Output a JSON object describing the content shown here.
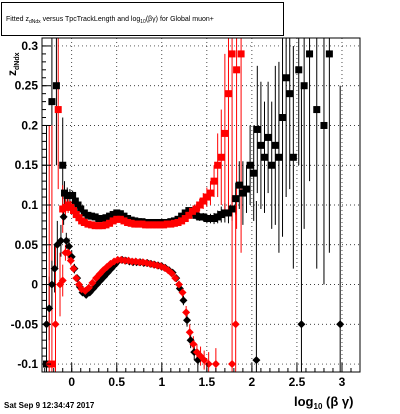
{
  "title": {
    "prefix": "Fitted  z",
    "sub": "dNdx",
    "middle": " versus TpcTrackLength and log",
    "sub2": "10",
    "suffix": "(βγ) for Global muon+"
  },
  "timestamp": "Sat Sep  9 12:34:47 2017",
  "x_axis_title": {
    "main": "log",
    "sub": "10",
    "rest": "(β γ)"
  },
  "y_axis_title": {
    "main": "z",
    "sub": "dNdx"
  },
  "chart_data": {
    "type": "scatter",
    "xlim": [
      -0.33,
      3.2
    ],
    "ylim": [
      -0.11,
      0.31
    ],
    "x_ticks": [
      0,
      0.5,
      1,
      1.5,
      2,
      2.5,
      3
    ],
    "x_tick_labels": [
      "0",
      "0.5",
      "1",
      "1.5",
      "2",
      "2.5",
      "3"
    ],
    "y_ticks": [
      -0.1,
      -0.05,
      0,
      0.05,
      0.1,
      0.15,
      0.2,
      0.25,
      0.3
    ],
    "y_tick_labels": [
      "-0.1",
      "-0.05",
      "0",
      "0.05",
      "0.1",
      "0.15",
      "0.2",
      "0.25",
      "0.3"
    ],
    "grid": true,
    "series": [
      {
        "marker": "square",
        "color": "#000000",
        "points": [
          [
            -0.28,
            -0.1,
            0.3
          ],
          [
            -0.22,
            0.23,
            0.08
          ],
          [
            -0.17,
            0.25,
            0.1
          ],
          [
            -0.1,
            0.15,
            0.06
          ],
          [
            -0.08,
            0.115,
            0.015
          ],
          [
            -0.05,
            0.112,
            0.01
          ],
          [
            -0.02,
            0.112,
            0.008
          ],
          [
            0.01,
            0.112,
            0.006
          ],
          [
            0.04,
            0.105,
            0.005
          ],
          [
            0.07,
            0.1,
            0.004
          ],
          [
            0.1,
            0.095,
            0.004
          ],
          [
            0.14,
            0.09,
            0.003
          ],
          [
            0.18,
            0.087,
            0.003
          ],
          [
            0.22,
            0.086,
            0.002
          ],
          [
            0.26,
            0.085,
            0.002
          ],
          [
            0.3,
            0.083,
            0.002
          ],
          [
            0.34,
            0.083,
            0.002
          ],
          [
            0.38,
            0.084,
            0.002
          ],
          [
            0.42,
            0.086,
            0.002
          ],
          [
            0.46,
            0.088,
            0.002
          ],
          [
            0.5,
            0.09,
            0.002
          ],
          [
            0.54,
            0.089,
            0.002
          ],
          [
            0.58,
            0.086,
            0.002
          ],
          [
            0.62,
            0.083,
            0.002
          ],
          [
            0.66,
            0.081,
            0.002
          ],
          [
            0.7,
            0.08,
            0.002
          ],
          [
            0.74,
            0.079,
            0.002
          ],
          [
            0.78,
            0.079,
            0.002
          ],
          [
            0.82,
            0.078,
            0.002
          ],
          [
            0.86,
            0.078,
            0.002
          ],
          [
            0.9,
            0.078,
            0.002
          ],
          [
            0.94,
            0.078,
            0.002
          ],
          [
            0.98,
            0.078,
            0.002
          ],
          [
            1.02,
            0.078,
            0.002
          ],
          [
            1.06,
            0.078,
            0.002
          ],
          [
            1.1,
            0.079,
            0.002
          ],
          [
            1.14,
            0.08,
            0.003
          ],
          [
            1.18,
            0.082,
            0.003
          ],
          [
            1.22,
            0.086,
            0.004
          ],
          [
            1.26,
            0.09,
            0.004
          ],
          [
            1.3,
            0.093,
            0.004
          ],
          [
            1.34,
            0.09,
            0.004
          ],
          [
            1.38,
            0.087,
            0.005
          ],
          [
            1.42,
            0.085,
            0.005
          ],
          [
            1.46,
            0.085,
            0.005
          ],
          [
            1.5,
            0.083,
            0.006
          ],
          [
            1.54,
            0.083,
            0.006
          ],
          [
            1.58,
            0.083,
            0.007
          ],
          [
            1.62,
            0.085,
            0.008
          ],
          [
            1.66,
            0.088,
            0.01
          ],
          [
            1.7,
            0.09,
            0.012
          ],
          [
            1.74,
            0.09,
            0.013
          ],
          [
            1.78,
            0.095,
            0.015
          ],
          [
            1.82,
            0.108,
            0.02
          ],
          [
            1.86,
            0.125,
            0.03
          ],
          [
            1.9,
            0.115,
            0.04
          ],
          [
            1.94,
            0.12,
            0.03
          ],
          [
            1.98,
            0.15,
            0.05
          ],
          [
            2.02,
            0.14,
            0.06
          ],
          [
            2.06,
            0.195,
            0.08
          ],
          [
            2.1,
            0.175,
            0.08
          ],
          [
            2.14,
            0.16,
            0.07
          ],
          [
            2.18,
            0.185,
            0.07
          ],
          [
            2.22,
            0.15,
            0.08
          ],
          [
            2.26,
            0.175,
            0.1
          ],
          [
            2.3,
            0.16,
            0.12
          ],
          [
            2.34,
            0.21,
            0.15
          ],
          [
            2.38,
            0.26,
            0.15
          ],
          [
            2.42,
            0.24,
            0.12
          ],
          [
            2.46,
            0.16,
            0.14
          ],
          [
            2.52,
            0.27,
            0.12
          ],
          [
            2.58,
            0.25,
            0.18
          ],
          [
            2.64,
            0.29,
            0.16
          ],
          [
            2.72,
            0.22,
            0.2
          ],
          [
            2.8,
            0.2,
            0.2
          ],
          [
            2.86,
            0.29,
            0.25
          ]
        ]
      },
      {
        "marker": "square",
        "color": "#ff0000",
        "points": [
          [
            -0.22,
            -0.1,
            0.3
          ],
          [
            -0.15,
            0.22,
            0.1
          ],
          [
            -0.1,
            0.095,
            0.03
          ],
          [
            -0.07,
            0.097,
            0.015
          ],
          [
            -0.04,
            0.1,
            0.01
          ],
          [
            -0.01,
            0.097,
            0.008
          ],
          [
            0.02,
            0.093,
            0.006
          ],
          [
            0.05,
            0.088,
            0.005
          ],
          [
            0.08,
            0.084,
            0.004
          ],
          [
            0.11,
            0.08,
            0.004
          ],
          [
            0.14,
            0.078,
            0.003
          ],
          [
            0.18,
            0.076,
            0.003
          ],
          [
            0.22,
            0.075,
            0.002
          ],
          [
            0.26,
            0.074,
            0.002
          ],
          [
            0.3,
            0.074,
            0.002
          ],
          [
            0.34,
            0.074,
            0.002
          ],
          [
            0.38,
            0.075,
            0.002
          ],
          [
            0.42,
            0.077,
            0.002
          ],
          [
            0.46,
            0.08,
            0.002
          ],
          [
            0.5,
            0.082,
            0.002
          ],
          [
            0.54,
            0.082,
            0.002
          ],
          [
            0.58,
            0.08,
            0.002
          ],
          [
            0.62,
            0.078,
            0.002
          ],
          [
            0.66,
            0.077,
            0.002
          ],
          [
            0.7,
            0.076,
            0.002
          ],
          [
            0.74,
            0.076,
            0.002
          ],
          [
            0.78,
            0.076,
            0.002
          ],
          [
            0.82,
            0.075,
            0.002
          ],
          [
            0.86,
            0.075,
            0.002
          ],
          [
            0.9,
            0.075,
            0.002
          ],
          [
            0.94,
            0.075,
            0.002
          ],
          [
            0.98,
            0.075,
            0.002
          ],
          [
            1.02,
            0.075,
            0.002
          ],
          [
            1.06,
            0.076,
            0.002
          ],
          [
            1.1,
            0.076,
            0.002
          ],
          [
            1.14,
            0.077,
            0.003
          ],
          [
            1.18,
            0.078,
            0.003
          ],
          [
            1.22,
            0.08,
            0.004
          ],
          [
            1.26,
            0.083,
            0.004
          ],
          [
            1.3,
            0.087,
            0.004
          ],
          [
            1.34,
            0.092,
            0.005
          ],
          [
            1.38,
            0.095,
            0.006
          ],
          [
            1.42,
            0.1,
            0.008
          ],
          [
            1.46,
            0.105,
            0.01
          ],
          [
            1.5,
            0.11,
            0.012
          ],
          [
            1.54,
            0.115,
            0.015
          ],
          [
            1.58,
            0.13,
            0.02
          ],
          [
            1.62,
            0.15,
            0.04
          ],
          [
            1.66,
            0.16,
            0.06
          ],
          [
            1.7,
            0.19,
            0.1
          ],
          [
            1.74,
            0.24,
            0.15
          ],
          [
            1.78,
            0.29,
            0.2
          ],
          [
            1.83,
            0.27,
            0.2
          ],
          [
            1.88,
            0.29,
            0.25
          ]
        ]
      },
      {
        "marker": "diamond",
        "color": "#000000",
        "points": [
          [
            -0.28,
            -0.05,
            0.06
          ],
          [
            -0.25,
            -0.03,
            0.04
          ],
          [
            -0.22,
            0.0,
            0.03
          ],
          [
            -0.19,
            0.02,
            0.03
          ],
          [
            -0.16,
            0.05,
            0.03
          ],
          [
            -0.12,
            0.055,
            0.02
          ],
          [
            -0.09,
            0.085,
            0.01
          ],
          [
            -0.06,
            0.055,
            0.01
          ],
          [
            -0.03,
            0.048,
            0.01
          ],
          [
            0.0,
            0.035,
            0.008
          ],
          [
            0.03,
            0.02,
            0.006
          ],
          [
            0.06,
            0.008,
            0.004
          ],
          [
            0.09,
            -0.003,
            0.003
          ],
          [
            0.12,
            -0.01,
            0.003
          ],
          [
            0.16,
            -0.013,
            0.003
          ],
          [
            0.2,
            -0.01,
            0.002
          ],
          [
            0.24,
            -0.005,
            0.002
          ],
          [
            0.28,
            0.0,
            0.002
          ],
          [
            0.32,
            0.005,
            0.002
          ],
          [
            0.36,
            0.01,
            0.002
          ],
          [
            0.4,
            0.015,
            0.002
          ],
          [
            0.44,
            0.02,
            0.002
          ],
          [
            0.48,
            0.025,
            0.002
          ],
          [
            0.52,
            0.03,
            0.002
          ],
          [
            0.56,
            0.031,
            0.002
          ],
          [
            0.6,
            0.03,
            0.002
          ],
          [
            0.64,
            0.029,
            0.002
          ],
          [
            0.68,
            0.028,
            0.002
          ],
          [
            0.72,
            0.028,
            0.002
          ],
          [
            0.76,
            0.028,
            0.002
          ],
          [
            0.8,
            0.027,
            0.002
          ],
          [
            0.84,
            0.027,
            0.002
          ],
          [
            0.88,
            0.026,
            0.002
          ],
          [
            0.92,
            0.025,
            0.002
          ],
          [
            0.96,
            0.024,
            0.002
          ],
          [
            1.0,
            0.023,
            0.002
          ],
          [
            1.04,
            0.021,
            0.002
          ],
          [
            1.08,
            0.018,
            0.003
          ],
          [
            1.12,
            0.015,
            0.003
          ],
          [
            1.16,
            0.008,
            0.004
          ],
          [
            1.2,
            -0.005,
            0.005
          ],
          [
            1.24,
            -0.02,
            0.006
          ],
          [
            1.28,
            -0.045,
            0.008
          ],
          [
            1.32,
            -0.07,
            0.01
          ],
          [
            1.36,
            -0.085,
            0.01
          ],
          [
            1.4,
            -0.095,
            0.01
          ],
          [
            2.05,
            -0.095,
            0.2
          ],
          [
            2.55,
            -0.05,
            0.3
          ],
          [
            2.98,
            -0.05,
            0.3
          ]
        ]
      },
      {
        "marker": "diamond",
        "color": "#ff0000",
        "points": [
          [
            -0.25,
            -0.1,
            0.3
          ],
          [
            -0.18,
            -0.05,
            0.1
          ],
          [
            -0.13,
            0.0,
            0.04
          ],
          [
            -0.1,
            0.005,
            0.02
          ],
          [
            -0.07,
            0.04,
            0.01
          ],
          [
            -0.04,
            0.04,
            0.008
          ],
          [
            -0.01,
            0.03,
            0.006
          ],
          [
            0.02,
            0.02,
            0.005
          ],
          [
            0.05,
            0.008,
            0.004
          ],
          [
            0.08,
            0.0,
            0.003
          ],
          [
            0.11,
            -0.006,
            0.003
          ],
          [
            0.15,
            -0.008,
            0.003
          ],
          [
            0.19,
            -0.004,
            0.002
          ],
          [
            0.23,
            0.002,
            0.002
          ],
          [
            0.27,
            0.008,
            0.002
          ],
          [
            0.31,
            0.013,
            0.002
          ],
          [
            0.35,
            0.018,
            0.002
          ],
          [
            0.39,
            0.022,
            0.002
          ],
          [
            0.43,
            0.026,
            0.002
          ],
          [
            0.47,
            0.029,
            0.002
          ],
          [
            0.51,
            0.031,
            0.002
          ],
          [
            0.55,
            0.031,
            0.002
          ],
          [
            0.59,
            0.03,
            0.002
          ],
          [
            0.63,
            0.03,
            0.002
          ],
          [
            0.67,
            0.029,
            0.002
          ],
          [
            0.71,
            0.029,
            0.002
          ],
          [
            0.75,
            0.028,
            0.002
          ],
          [
            0.79,
            0.028,
            0.002
          ],
          [
            0.83,
            0.027,
            0.002
          ],
          [
            0.87,
            0.026,
            0.002
          ],
          [
            0.91,
            0.025,
            0.002
          ],
          [
            0.95,
            0.024,
            0.002
          ],
          [
            0.99,
            0.023,
            0.002
          ],
          [
            1.03,
            0.021,
            0.002
          ],
          [
            1.07,
            0.018,
            0.003
          ],
          [
            1.11,
            0.014,
            0.003
          ],
          [
            1.15,
            0.008,
            0.004
          ],
          [
            1.19,
            0.0,
            0.005
          ],
          [
            1.23,
            -0.01,
            0.006
          ],
          [
            1.27,
            -0.035,
            0.008
          ],
          [
            1.31,
            -0.06,
            0.01
          ],
          [
            1.35,
            -0.075,
            0.01
          ],
          [
            1.39,
            -0.085,
            0.01
          ],
          [
            1.43,
            -0.09,
            0.012
          ],
          [
            1.47,
            -0.095,
            0.012
          ],
          [
            1.52,
            -0.1,
            0.015
          ],
          [
            1.6,
            -0.1,
            0.02
          ],
          [
            1.78,
            -0.1,
            0.2
          ],
          [
            1.82,
            -0.05,
            0.15
          ]
        ]
      }
    ]
  }
}
